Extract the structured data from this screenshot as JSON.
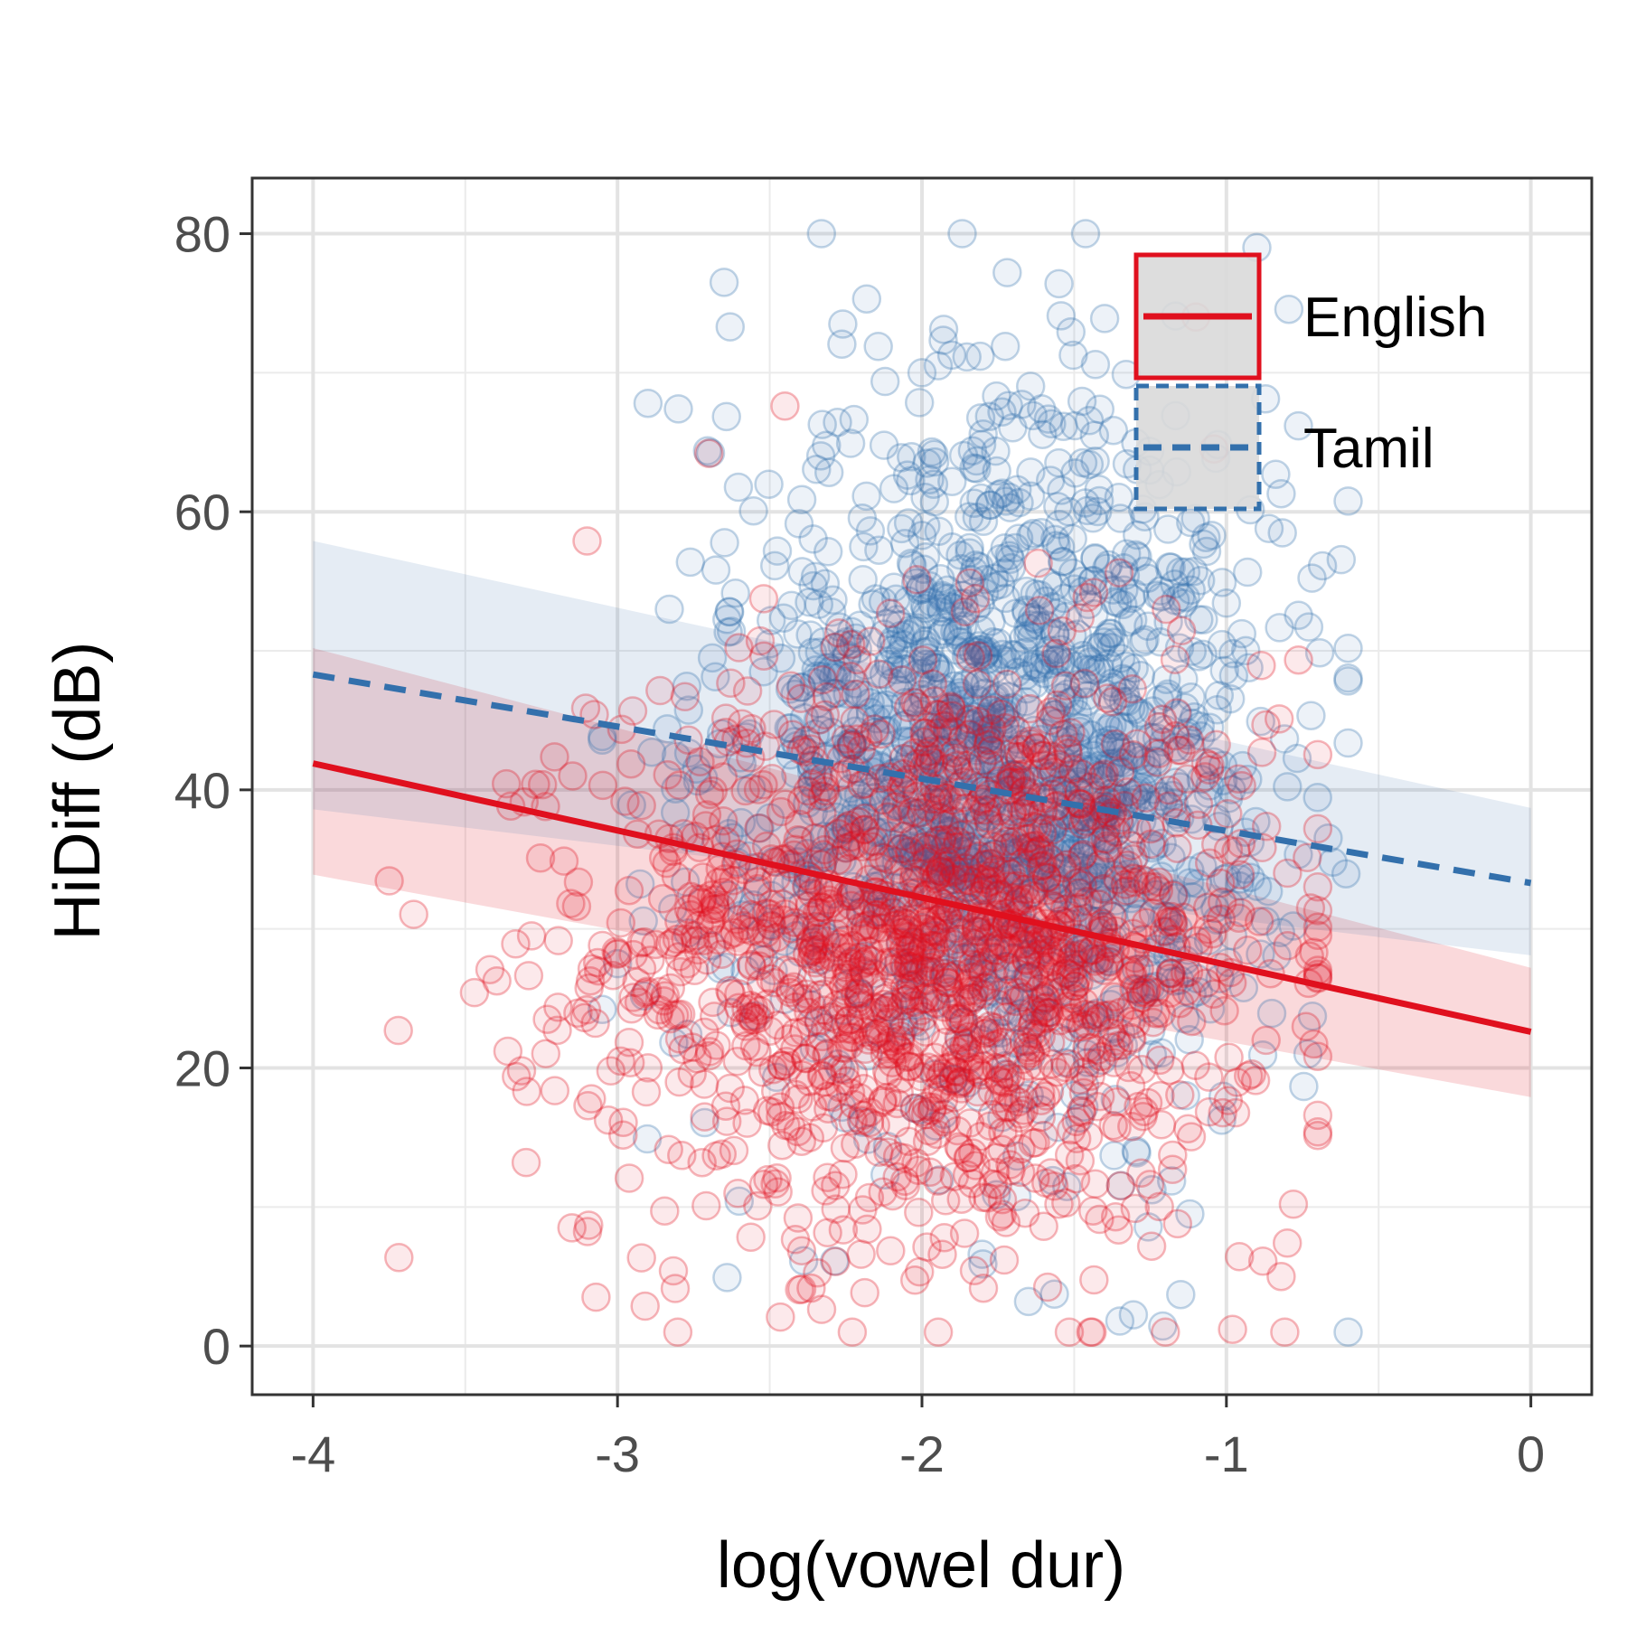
{
  "chart_data": {
    "type": "scatter",
    "xlabel": "log(vowel dur)",
    "ylabel": "HiDiff (dB)",
    "xlim": [
      -4.2,
      0.2
    ],
    "ylim": [
      -3.5,
      84
    ],
    "x_ticks": [
      -4,
      -3,
      -2,
      -1,
      0
    ],
    "x_tick_labels": [
      "-4",
      "-3",
      "-2",
      "-1",
      "0"
    ],
    "y_ticks": [
      0,
      20,
      40,
      60,
      80
    ],
    "y_tick_labels": [
      "0",
      "20",
      "40",
      "60",
      "80"
    ],
    "x_minor_ticks": [
      -3.5,
      -2.5,
      -1.5,
      -0.5
    ],
    "y_minor_ticks": [
      10,
      30,
      50,
      70
    ],
    "grid": true,
    "legend_position": "top-right",
    "series": [
      {
        "name": "English",
        "color": "#E0101E",
        "linestyle": "solid",
        "fit_line": {
          "x": [
            -4,
            0
          ],
          "y": [
            41.9,
            22.6
          ]
        },
        "ci_band": {
          "x": [
            -4,
            0
          ],
          "lower": [
            33.9,
            17.9
          ],
          "upper": [
            50.2,
            27.2
          ]
        },
        "point_cloud": {
          "x_center": -1.95,
          "x_spread": 0.55,
          "x_range": [
            -3.75,
            -0.7
          ],
          "y_center": 28.5,
          "y_spread": 10.5,
          "y_range": [
            1,
            68
          ],
          "count": 1500
        },
        "points_sample": [
          [
            -3.72,
            22.7
          ],
          [
            -3.36,
            21.2
          ],
          [
            -3.15,
            8.5
          ],
          [
            -3.3,
            13.2
          ],
          [
            -2.2,
            6.6
          ],
          [
            -0.98,
            1.2
          ],
          [
            -0.82,
            5.0
          ],
          [
            -0.88,
            6.1
          ],
          [
            -0.8,
            7.4
          ],
          [
            -1.1,
            74.0
          ],
          [
            -2.45,
            67.6
          ],
          [
            -2.7,
            64.2
          ],
          [
            -3.1,
            57.9
          ],
          [
            -0.95,
            40.3
          ],
          [
            -0.7,
            15.4
          ],
          [
            -0.78,
            10.2
          ],
          [
            -1.3,
            9.9
          ],
          [
            -2.18,
            8.4
          ]
        ]
      },
      {
        "name": "Tamil",
        "color": "#3370AC",
        "linestyle": "dashed",
        "fit_line": {
          "x": [
            -4,
            0
          ],
          "y": [
            48.3,
            33.3
          ]
        },
        "ci_band": {
          "x": [
            -4,
            0
          ],
          "lower": [
            38.6,
            28.1
          ],
          "upper": [
            57.9,
            38.7
          ]
        },
        "point_cloud": {
          "x_center": -1.75,
          "x_spread": 0.45,
          "x_range": [
            -3.05,
            -0.6
          ],
          "y_center": 42.0,
          "y_spread": 12.5,
          "y_range": [
            1,
            80
          ],
          "count": 1500
        },
        "points_sample": [
          [
            -0.9,
            79.0
          ],
          [
            -2.65,
            76.5
          ],
          [
            -1.55,
            76.4
          ],
          [
            -1.72,
            77.2
          ],
          [
            -2.63,
            73.3
          ],
          [
            -2.26,
            73.5
          ],
          [
            -1.4,
            73.9
          ],
          [
            -2.9,
            67.8
          ],
          [
            -2.8,
            67.4
          ],
          [
            -2.0,
            70.0
          ],
          [
            -1.35,
            1.8
          ],
          [
            -1.65,
            3.2
          ],
          [
            -1.15,
            3.7
          ],
          [
            -1.8,
            5.9
          ],
          [
            -1.12,
            9.5
          ],
          [
            -0.82,
            61.3
          ],
          [
            -0.65,
            34.8
          ],
          [
            -3.0,
            27.5
          ]
        ]
      }
    ]
  }
}
